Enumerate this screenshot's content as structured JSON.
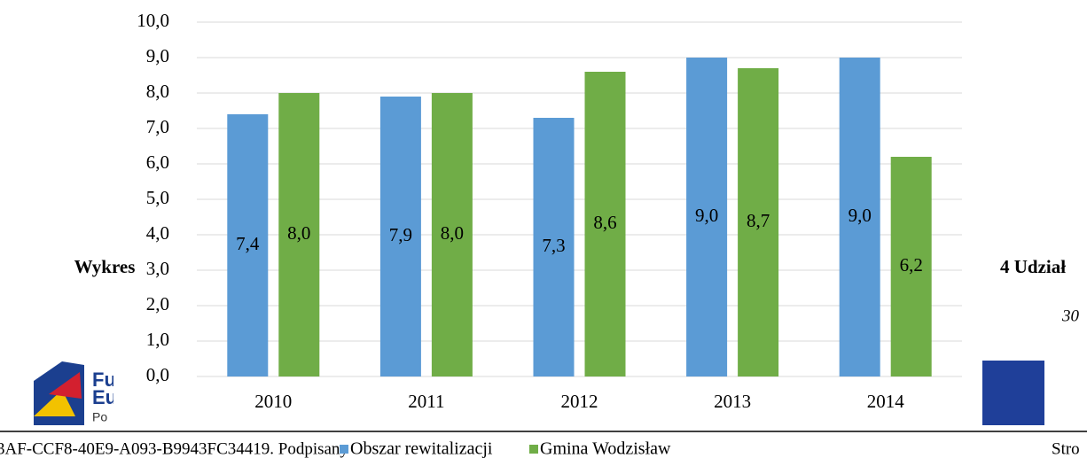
{
  "chart_data": {
    "type": "bar",
    "categories": [
      "2010",
      "2011",
      "2012",
      "2013",
      "2014"
    ],
    "series": [
      {
        "name": "Obszar rewitalizacji",
        "color": "#5b9bd5",
        "values": [
          7.4,
          7.9,
          7.3,
          9.0,
          9.0
        ],
        "value_labels": [
          "7,4",
          "7,9",
          "7,3",
          "9,0",
          "9,0"
        ]
      },
      {
        "name": "Gmina Wodzisław",
        "color": "#70ad47",
        "values": [
          8.0,
          8.0,
          8.6,
          8.7,
          6.2
        ],
        "value_labels": [
          "8,0",
          "8,0",
          "8,6",
          "8,7",
          "6,2"
        ]
      }
    ],
    "ylim": [
      0,
      10
    ],
    "yticks": [
      {
        "value": 0,
        "label": "0,0"
      },
      {
        "value": 1,
        "label": "1,0"
      },
      {
        "value": 2,
        "label": "2,0"
      },
      {
        "value": 3,
        "label": "3,0"
      },
      {
        "value": 4,
        "label": "4,0"
      },
      {
        "value": 5,
        "label": "5,0"
      },
      {
        "value": 6,
        "label": "6,0"
      },
      {
        "value": 7,
        "label": "7,0"
      },
      {
        "value": 8,
        "label": "8,0"
      },
      {
        "value": 9,
        "label": "9,0"
      },
      {
        "value": 10,
        "label": "10,0"
      }
    ],
    "grid": true,
    "legend": "bottom"
  },
  "document": {
    "caption_left": "Wykres",
    "caption_right": "4 Udział",
    "page_note": "30",
    "logo_lines": [
      "Fu",
      "Eu",
      "Po"
    ],
    "footer_left": "3AF-CCF8-40E9-A093-B9943FC34419. Podpisany",
    "footer_right": "Stro"
  }
}
